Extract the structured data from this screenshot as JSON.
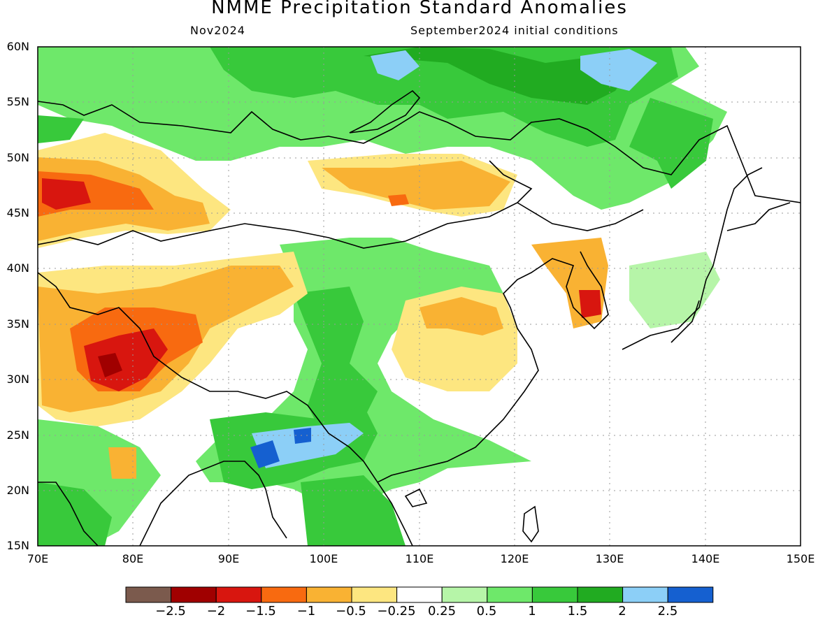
{
  "title": "NMME Precipitation Standard Anomalies",
  "subtitle_left": "Nov2024",
  "subtitle_right": "September2024 initial conditions",
  "lat_labels": [
    "60N",
    "55N",
    "50N",
    "45N",
    "40N",
    "35N",
    "30N",
    "25N",
    "20N",
    "15N"
  ],
  "lon_labels": [
    "70E",
    "80E",
    "90E",
    "100E",
    "110E",
    "120E",
    "130E",
    "140E",
    "150E"
  ],
  "colorbar": {
    "colors": [
      "#7b5a4d",
      "#a00000",
      "#d8160f",
      "#f86a10",
      "#f9b233",
      "#fde680",
      "#ffffff",
      "#b6f5a8",
      "#6ee86a",
      "#38c93b",
      "#21ab21",
      "#8ccff7",
      "#1560d0"
    ],
    "labels": [
      "−2.5",
      "−2",
      "−1.5",
      "−1",
      "−0.5",
      "−0.25",
      "0.25",
      "0.5",
      "1",
      "1.5",
      "2",
      "2.5"
    ]
  },
  "map": {
    "lon_range": [
      70,
      150
    ],
    "lat_range": [
      15,
      60
    ]
  }
}
